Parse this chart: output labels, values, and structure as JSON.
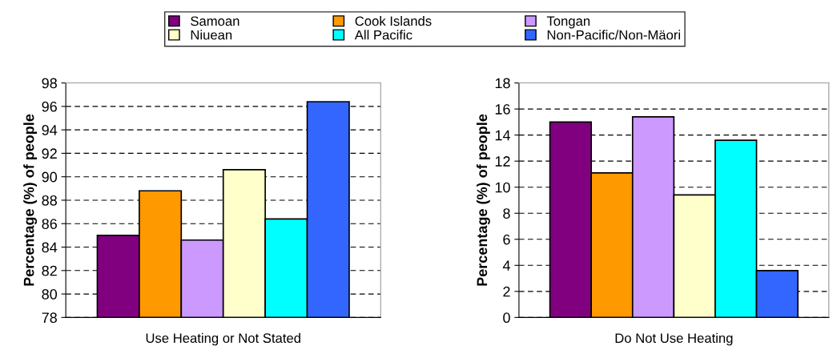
{
  "chart_data": [
    {
      "type": "bar",
      "categories": [
        "Use Heating or Not Stated"
      ],
      "ylabel": "Percentage (%) of people",
      "ylim": [
        78,
        98
      ],
      "yticks": [
        78,
        80,
        82,
        84,
        86,
        88,
        90,
        92,
        94,
        96,
        98
      ],
      "grid": "y",
      "legend": "top",
      "series": [
        {
          "name": "Samoan",
          "color": "#800080",
          "values": [
            85.0
          ]
        },
        {
          "name": "Cook Islands",
          "color": "#ff9900",
          "values": [
            88.8
          ]
        },
        {
          "name": "Tongan",
          "color": "#cc99ff",
          "values": [
            84.6
          ]
        },
        {
          "name": "Niuean",
          "color": "#ffffcc",
          "values": [
            90.6
          ]
        },
        {
          "name": "All Pacific",
          "color": "#00ffff",
          "values": [
            86.4
          ]
        },
        {
          "name": "Non-Pacific/Non-Mäori",
          "color": "#3366ff",
          "values": [
            96.4
          ]
        }
      ]
    },
    {
      "type": "bar",
      "categories": [
        "Do Not Use Heating"
      ],
      "ylabel": "Percentage (%) of people",
      "ylim": [
        0,
        18
      ],
      "yticks": [
        0,
        2,
        4,
        6,
        8,
        10,
        12,
        14,
        16,
        18
      ],
      "grid": "y",
      "legend": "top",
      "series": [
        {
          "name": "Samoan",
          "color": "#800080",
          "values": [
            15.0
          ]
        },
        {
          "name": "Cook Islands",
          "color": "#ff9900",
          "values": [
            11.1
          ]
        },
        {
          "name": "Tongan",
          "color": "#cc99ff",
          "values": [
            15.4
          ]
        },
        {
          "name": "Niuean",
          "color": "#ffffcc",
          "values": [
            9.4
          ]
        },
        {
          "name": "All Pacific",
          "color": "#00ffff",
          "values": [
            13.6
          ]
        },
        {
          "name": "Non-Pacific/Non-Mäori",
          "color": "#3366ff",
          "values": [
            3.6
          ]
        }
      ]
    }
  ]
}
